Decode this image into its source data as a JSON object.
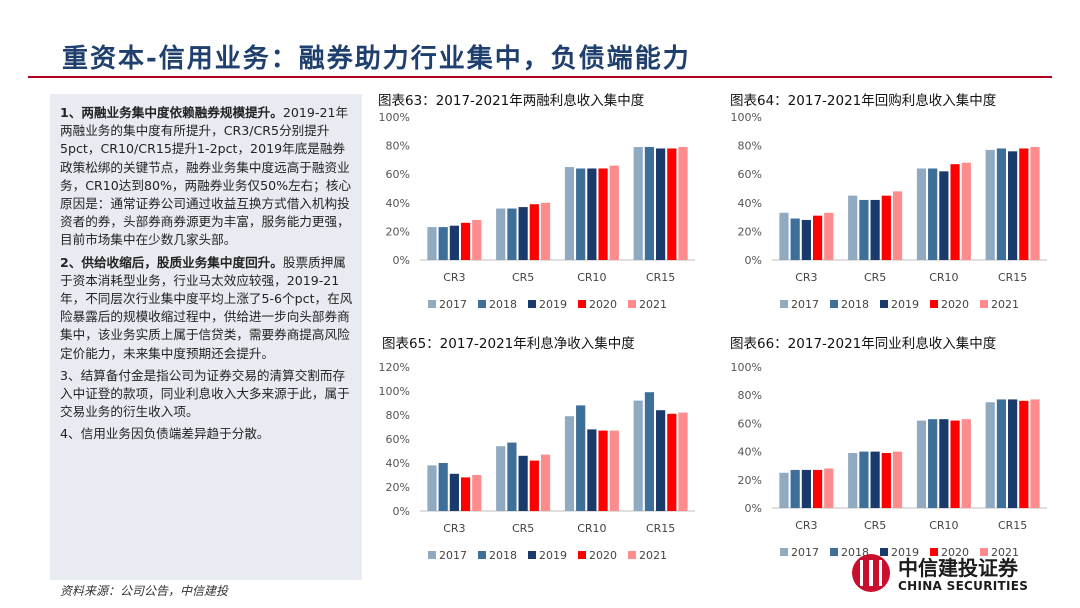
{
  "page": {
    "title": "重资本-信用业务：融券助力行业集中，负债端能力",
    "source": "资料来源：公司公告，中信建投"
  },
  "left_panel": {
    "p1_head": "1、两融业务集中度依赖融券规模提升。",
    "p1_body": "2019-21年两融业务的集中度有所提升，CR3/CR5分别提升5pct，CR10/CR15提升1-2pct，2019年底是融券政策松绑的关键节点，融券业务集中度远高于融资业务，CR10达到80%，两融券业务仅50%左右；核心原因是：通常证券公司通过收益互换方式借入机构投资者的券，头部券商券源更为丰富，服务能力更强，目前市场集中在少数几家头部。",
    "p2_head": "2、供给收缩后，股质业务集中度回升。",
    "p2_body": "股票质押属于资本消耗型业务，行业马太效应较强，2019-21年，不同层次行业集中度平均上涨了5-6个pct，在风险暴露后的规模收缩过程中，供给进一步向头部券商集中，该业务实质上属于信贷类，需要券商提高风险定价能力，未来集中度预期还会提升。",
    "p3": "3、结算备付金是指公司为证券交易的清算交割而存入中证登的款项，同业利息收入大多来源于此，属于交易业务的衍生收入项。",
    "p4": "4、信用业务因负债端差异趋于分散。"
  },
  "logo": {
    "cn": "中信建投证券",
    "en": "CHINA SECURITIES"
  },
  "colors": [
    "#8faac1",
    "#3d6f98",
    "#1a3a6b",
    "#ff0000",
    "#ff8c8c"
  ],
  "chart_data": [
    {
      "type": "bar",
      "title": "图表63：2017-2021年两融利息收入集中度",
      "categories": [
        "CR3",
        "CR5",
        "CR10",
        "CR15"
      ],
      "series": [
        {
          "name": "2017",
          "values": [
            23,
            36,
            65,
            79
          ]
        },
        {
          "name": "2018",
          "values": [
            23,
            36,
            64,
            79
          ]
        },
        {
          "name": "2019",
          "values": [
            24,
            37,
            64,
            78
          ]
        },
        {
          "name": "2020",
          "values": [
            26,
            39,
            64,
            78
          ]
        },
        {
          "name": "2021",
          "values": [
            28,
            40,
            66,
            79
          ]
        }
      ],
      "yticks": [
        "0%",
        "20%",
        "40%",
        "60%",
        "80%",
        "100%"
      ],
      "ylim": [
        0,
        100
      ]
    },
    {
      "type": "bar",
      "title": "图表64：2017-2021年回购利息收入集中度",
      "categories": [
        "CR3",
        "CR5",
        "CR10",
        "CR15"
      ],
      "series": [
        {
          "name": "2017",
          "values": [
            33,
            45,
            64,
            77
          ]
        },
        {
          "name": "2018",
          "values": [
            29,
            42,
            64,
            78
          ]
        },
        {
          "name": "2019",
          "values": [
            28,
            42,
            62,
            76
          ]
        },
        {
          "name": "2020",
          "values": [
            31,
            45,
            67,
            78
          ]
        },
        {
          "name": "2021",
          "values": [
            33,
            48,
            68,
            79
          ]
        }
      ],
      "yticks": [
        "0%",
        "20%",
        "40%",
        "60%",
        "80%",
        "100%"
      ],
      "ylim": [
        0,
        100
      ]
    },
    {
      "type": "bar",
      "title": "图表65：2017-2021年利息净收入集中度",
      "categories": [
        "CR3",
        "CR5",
        "CR10",
        "CR15"
      ],
      "series": [
        {
          "name": "2017",
          "values": [
            38,
            54,
            79,
            92
          ]
        },
        {
          "name": "2018",
          "values": [
            40,
            57,
            88,
            99
          ]
        },
        {
          "name": "2019",
          "values": [
            31,
            46,
            68,
            84
          ]
        },
        {
          "name": "2020",
          "values": [
            28,
            42,
            67,
            81
          ]
        },
        {
          "name": "2021",
          "values": [
            30,
            47,
            67,
            82
          ]
        }
      ],
      "yticks": [
        "0%",
        "20%",
        "40%",
        "60%",
        "80%",
        "100%",
        "120%"
      ],
      "ylim": [
        0,
        120
      ]
    },
    {
      "type": "bar",
      "title": "图表66：2017-2021年同业利息收入集中度",
      "categories": [
        "CR3",
        "CR5",
        "CR10",
        "CR15"
      ],
      "series": [
        {
          "name": "2017",
          "values": [
            25,
            39,
            62,
            75
          ]
        },
        {
          "name": "2018",
          "values": [
            27,
            40,
            63,
            77
          ]
        },
        {
          "name": "2019",
          "values": [
            27,
            40,
            63,
            77
          ]
        },
        {
          "name": "2020",
          "values": [
            27,
            39,
            62,
            76
          ]
        },
        {
          "name": "2021",
          "values": [
            28,
            40,
            63,
            77
          ]
        }
      ],
      "yticks": [
        "0%",
        "20%",
        "40%",
        "60%",
        "80%",
        "100%"
      ],
      "ylim": [
        0,
        100
      ]
    }
  ]
}
